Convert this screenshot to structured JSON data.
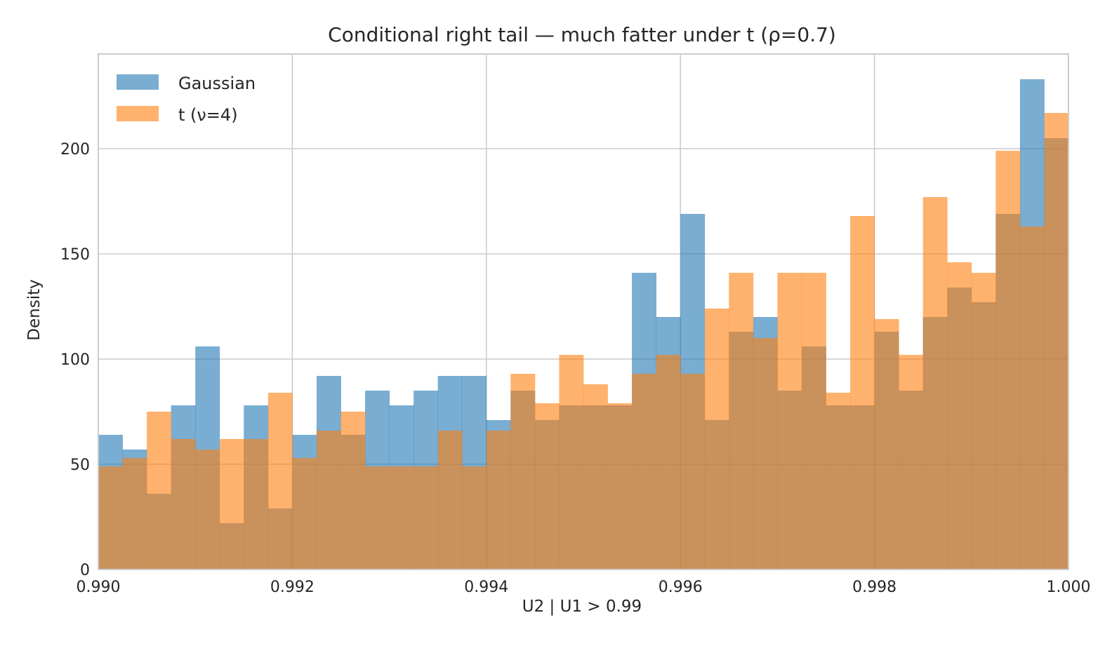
{
  "chart_data": {
    "type": "histogram",
    "title": "Conditional right tail — much fatter under t (ρ=0.7)",
    "xlabel": "U2 | U1 > 0.99",
    "ylabel": "Density",
    "xlim": [
      0.99,
      1.0
    ],
    "ylim": [
      0,
      245
    ],
    "xticks": [
      "0.990",
      "0.992",
      "0.994",
      "0.996",
      "0.998",
      "1.000"
    ],
    "yticks": [
      "0",
      "50",
      "100",
      "150",
      "200"
    ],
    "grid": true,
    "legend_position": "top-left",
    "bin_start": 0.99,
    "bin_width": 0.00025,
    "series": [
      {
        "name": "Gaussian",
        "color": "#1f77b4",
        "opacity": 0.6,
        "values": [
          64,
          57,
          36,
          78,
          106,
          22,
          78,
          29,
          64,
          92,
          64,
          85,
          78,
          85,
          92,
          92,
          71,
          85,
          71,
          78,
          78,
          78,
          141,
          120,
          169,
          71,
          113,
          120,
          85,
          106,
          78,
          78,
          113,
          85,
          120,
          134,
          127,
          169,
          233,
          205
        ]
      },
      {
        "name": "t (ν=4)",
        "color": "#ff7f0e",
        "opacity": 0.6,
        "values": [
          49,
          53,
          75,
          62,
          57,
          62,
          62,
          84,
          53,
          66,
          75,
          49,
          49,
          49,
          66,
          49,
          66,
          93,
          79,
          102,
          88,
          79,
          93,
          102,
          93,
          124,
          141,
          110,
          141,
          141,
          84,
          168,
          119,
          102,
          177,
          146,
          141,
          199,
          163,
          217
        ]
      }
    ]
  }
}
